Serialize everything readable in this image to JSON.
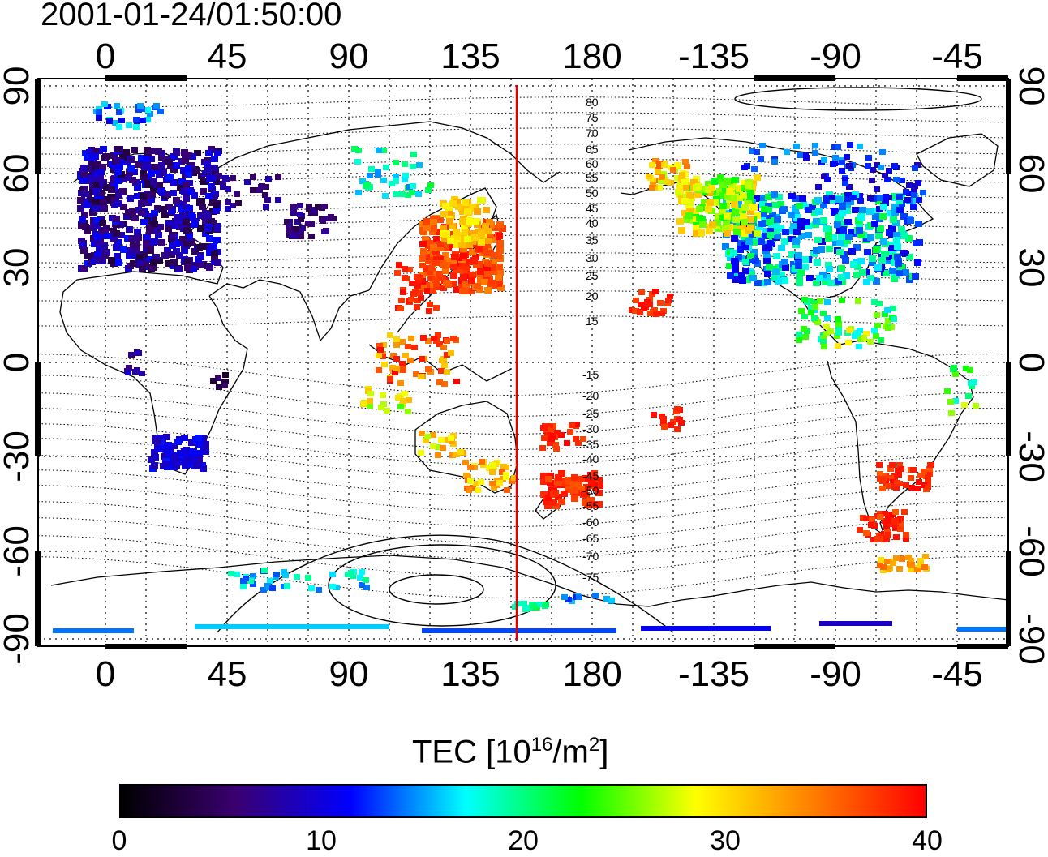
{
  "title": "2001-01-24/01:50:00",
  "x_ticks": [
    "0",
    "45",
    "90",
    "135",
    "180",
    "-135",
    "-90",
    "-45"
  ],
  "y_ticks": [
    "90",
    "60",
    "30",
    "0",
    "-30",
    "-60",
    "-90"
  ],
  "contour_labels": [
    "80",
    "75",
    "70",
    "65",
    "60",
    "55",
    "50",
    "45",
    "40",
    "35",
    "30",
    "25",
    "20",
    "15",
    "-15",
    "-20",
    "-25",
    "-30",
    "-35",
    "-40",
    "-45",
    "-50",
    "-55",
    "-60",
    "-65",
    "-70",
    "-75"
  ],
  "colorbar": {
    "title_main": "TEC  [10",
    "title_exp": "16",
    "title_mid": "/m",
    "title_exp2": "2",
    "title_end": "]",
    "ticks": [
      "0",
      "10",
      "20",
      "30",
      "40"
    ],
    "min": 0,
    "max": 40
  },
  "colors": {
    "meridian_line": "#e00000",
    "scale": [
      "#000000",
      "#3a0070",
      "#0000ff",
      "#00ffff",
      "#00ff00",
      "#ffff00",
      "#ff8000",
      "#ff0000"
    ]
  },
  "meridian_longitude": 152
}
